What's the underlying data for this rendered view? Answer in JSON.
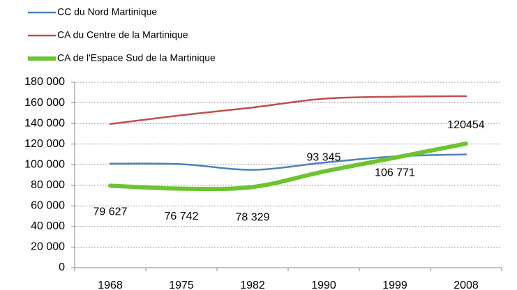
{
  "chart_data": {
    "type": "line",
    "categories": [
      "1968",
      "1975",
      "1982",
      "1990",
      "1999",
      "2008"
    ],
    "series": [
      {
        "name": "CC du Nord Martinique",
        "color": "#4f81bd",
        "values": [
          101000,
          100500,
          95000,
          102000,
          108000,
          110000
        ]
      },
      {
        "name": "CA du Centre de la Martinique",
        "color": "#c0504d",
        "values": [
          139500,
          148000,
          155500,
          164000,
          166000,
          166500
        ]
      },
      {
        "name": "CA de l'Espace Sud de la Martinique",
        "color": "#6cc52f",
        "values": [
          79627,
          76742,
          78329,
          93345,
          106771,
          120454
        ],
        "value_labels": [
          "79 627",
          "76 742",
          "78 329",
          "93 345",
          "106 771",
          "120454"
        ]
      }
    ],
    "ylim": [
      0,
      180000
    ],
    "yticks": [
      0,
      {
        "value": 20000,
        "label": "20 000"
      },
      {
        "value": 40000,
        "label": "40 000"
      },
      {
        "value": 60000,
        "label": "60 000"
      },
      {
        "value": 80000,
        "label": "80 000"
      },
      {
        "value": 100000,
        "label": "100 000"
      },
      {
        "value": 120000,
        "label": "120 000"
      },
      {
        "value": 140000,
        "label": "140 000"
      },
      {
        "value": 160000,
        "label": "160 000"
      },
      {
        "value": 180000,
        "label": "180 000"
      }
    ],
    "grid": true,
    "legend": "top-left"
  }
}
